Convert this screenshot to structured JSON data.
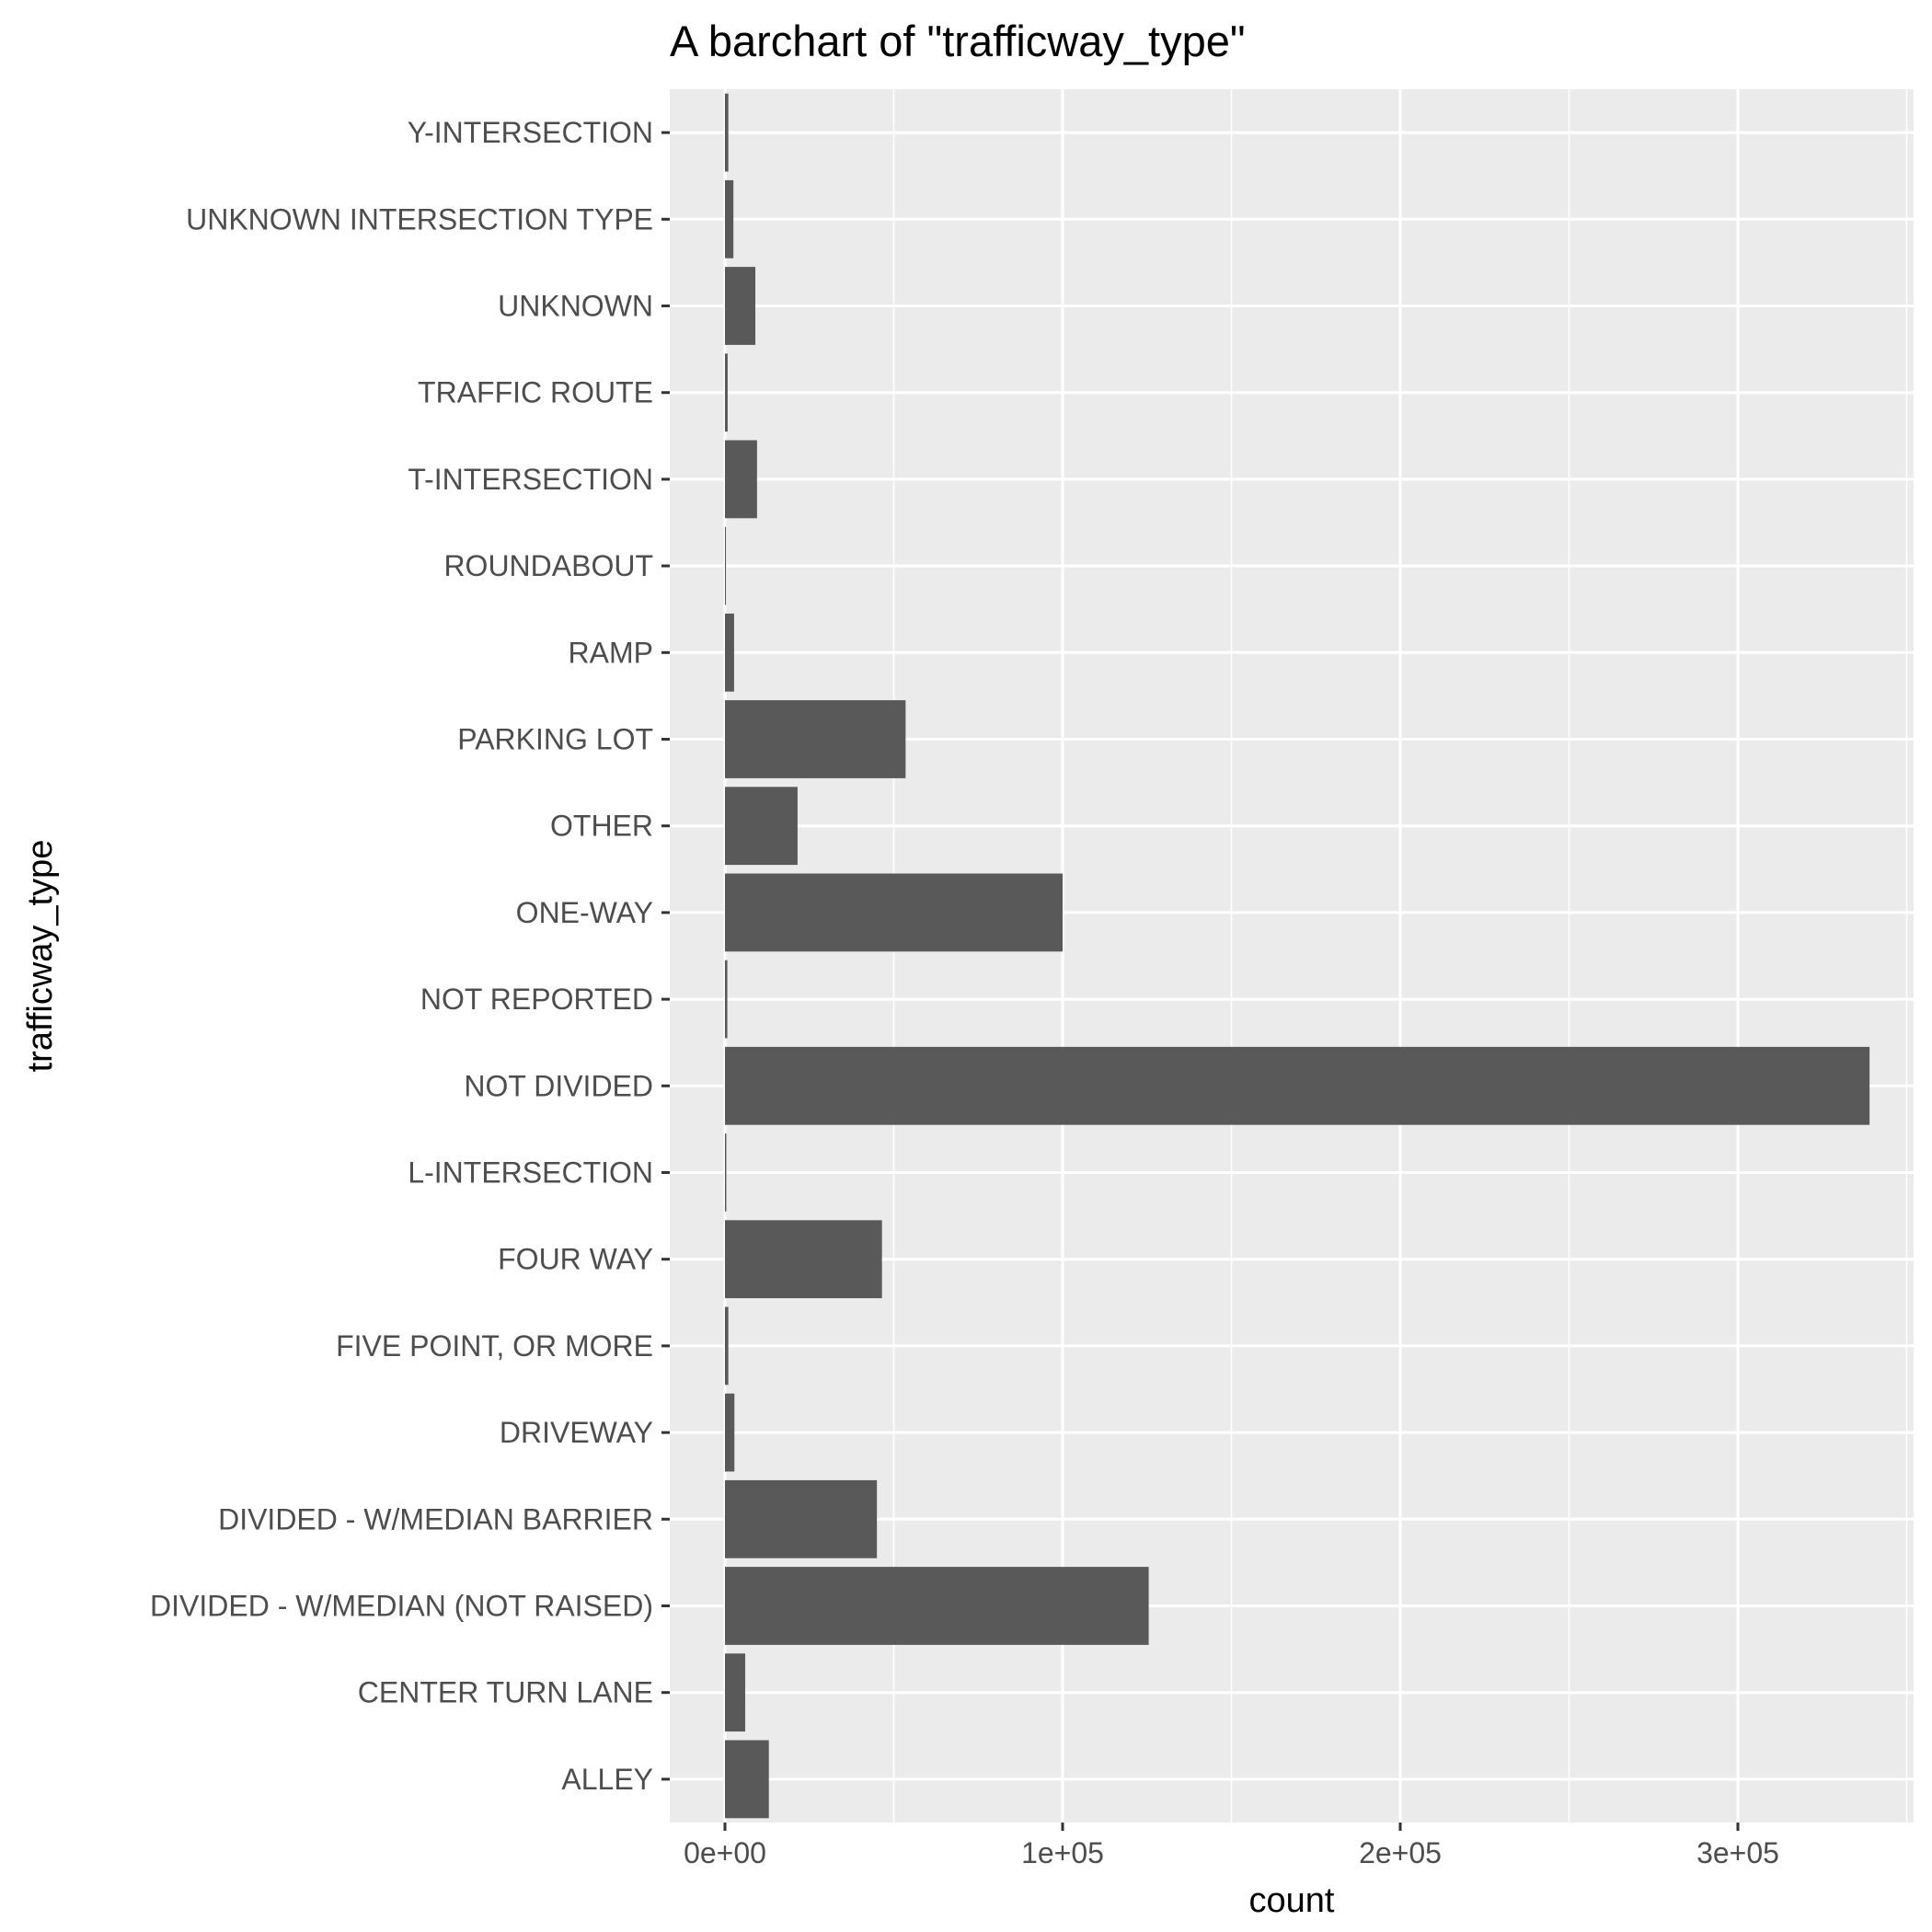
{
  "chart_data": {
    "type": "bar",
    "orientation": "horizontal",
    "title": "A barchart of \"trafficway_type\"",
    "xlabel": "count",
    "ylabel": "trafficway_type",
    "xlim": [
      0,
      350000
    ],
    "x_ticks": [
      0,
      100000,
      200000,
      300000
    ],
    "x_tick_labels": [
      "0e+00",
      "1e+05",
      "2e+05",
      "3e+05"
    ],
    "grid": true,
    "bar_color": "#595959",
    "panel_color": "#ebebeb",
    "categories": [
      "ALLEY",
      "CENTER TURN LANE",
      "DIVIDED - W/MEDIAN (NOT RAISED)",
      "DIVIDED - W/MEDIAN BARRIER",
      "DRIVEWAY",
      "FIVE POINT, OR MORE",
      "FOUR WAY",
      "L-INTERSECTION",
      "NOT DIVIDED",
      "NOT REPORTED",
      "ONE-WAY",
      "OTHER",
      "PARKING LOT",
      "RAMP",
      "ROUNDABOUT",
      "T-INTERSECTION",
      "TRAFFIC ROUTE",
      "UNKNOWN",
      "UNKNOWN INTERSECTION TYPE",
      "Y-INTERSECTION"
    ],
    "values": [
      13000,
      6000,
      125500,
      45000,
      2800,
      1000,
      46500,
      400,
      339000,
      700,
      100000,
      21500,
      53500,
      2700,
      300,
      9500,
      800,
      9000,
      2500,
      1000
    ]
  }
}
